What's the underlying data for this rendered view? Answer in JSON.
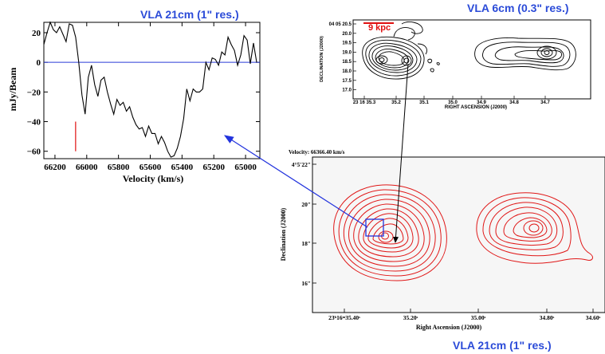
{
  "panels": {
    "spectrum_title": "VLA 21cm (1\" res.)",
    "inset_title": "VLA 6cm (0.3\" res.)",
    "map_title": "VLA 21cm (1\" res.)"
  },
  "chart_data": [
    {
      "type": "line",
      "title": "VLA 21cm (1\" res.)",
      "xlabel": "Velocity (km/s)",
      "ylabel": "mJy/Beam",
      "xlim": [
        66270,
        64910
      ],
      "ylim": [
        -65,
        27
      ],
      "x_ticks": [
        "66200",
        "66000",
        "65800",
        "65600",
        "65400",
        "65200",
        "65000"
      ],
      "y_ticks": [
        "20",
        "0",
        "−20",
        "−40",
        "−60"
      ],
      "series": [
        {
          "x": [
            66270,
            66250,
            66230,
            66210,
            66190,
            66170,
            66150,
            66130,
            66110,
            66090,
            66070,
            66050,
            66030,
            66010,
            65990,
            65970,
            65950,
            65930,
            65910,
            65890,
            65870,
            65850,
            65830,
            65810,
            65790,
            65770,
            65750,
            65730,
            65710,
            65690,
            65670,
            65650,
            65630,
            65610,
            65590,
            65570,
            65550,
            65530,
            65510,
            65490,
            65470,
            65450,
            65430,
            65410,
            65390,
            65370,
            65350,
            65330,
            65310,
            65290,
            65270,
            65250,
            65230,
            65210,
            65190,
            65170,
            65150,
            65130,
            65110,
            65090,
            65070,
            65050,
            65030,
            65010,
            64990,
            64970,
            64950,
            64930
          ],
          "values": [
            12,
            20,
            27,
            22,
            20,
            24,
            19,
            14,
            26,
            25,
            17,
            0,
            -22,
            -35,
            -10,
            -2,
            -15,
            -23,
            -12,
            -10,
            -20,
            -28,
            -35,
            -25,
            -29,
            -27,
            -33,
            -30,
            -37,
            -42,
            -45,
            -44,
            -50,
            -43,
            -48,
            -48,
            -55,
            -50,
            -54,
            -60,
            -64,
            -63,
            -58,
            -50,
            -38,
            -18,
            -26,
            -18,
            -20,
            -20,
            -18,
            0,
            -5,
            3,
            2,
            -2,
            7,
            5,
            17,
            12,
            8,
            -2,
            5,
            18,
            15,
            -1,
            13,
            0
          ]
        }
      ],
      "annotations": [
        {
          "type": "vline",
          "x": 66070,
          "y": [
            -40,
            -60
          ],
          "color": "#e01010"
        }
      ],
      "baseline": 0
    },
    {
      "type": "contour",
      "title": "VLA 6cm (0.3\" res.)",
      "scale_label": "9 kpc",
      "xlabel": "RIGHT ASCENSION (J2000)",
      "ylabel": "DECLINATION (J2000)",
      "x_ticks": [
        "23 16 35.3",
        "35.2",
        "35.1",
        "35.0",
        "34.9",
        "34.8",
        "34.7"
      ],
      "y_ticks": [
        "04 05 20.5",
        "20.0",
        "19.5",
        "19.0",
        "18.5",
        "18.0",
        "17.5",
        "17.0"
      ]
    },
    {
      "type": "contour",
      "title": "VLA 21cm (1\" res.)",
      "header": "Velocity: 66366.40 km/s",
      "xlabel": "Right Ascension (J2000)",
      "ylabel": "Declination (J2000)",
      "x_ticks": [
        "23ʰ16ᵐ35.40ˢ",
        "35.20ˢ",
        "35.00ˢ",
        "34.80ˢ",
        "34.60ˢ"
      ],
      "y_ticks": [
        "4°5′22″",
        "20″",
        "18″",
        "16″"
      ]
    }
  ]
}
